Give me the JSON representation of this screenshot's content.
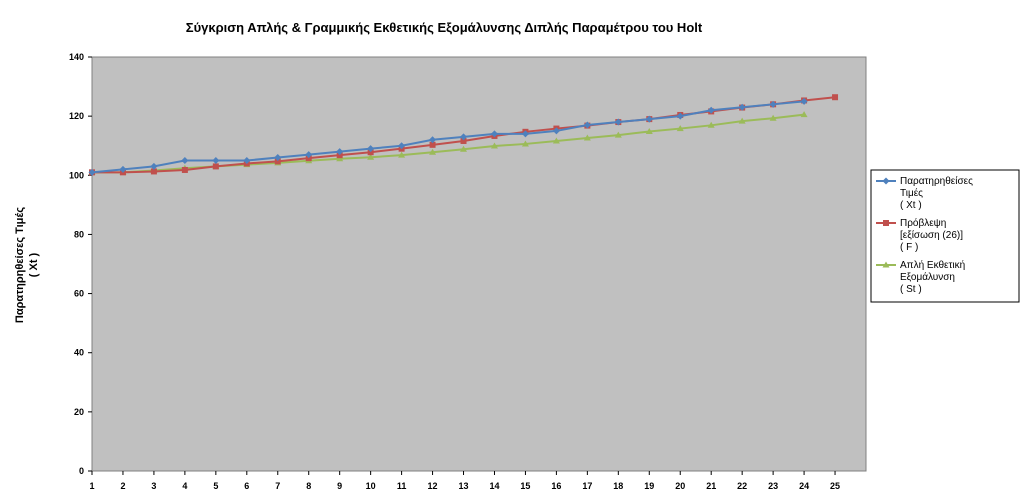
{
  "chart_data": {
    "type": "line",
    "title": "Σύγκριση Απλής & Γραμμικής Εκθετικής Εξομάλυνσης Διπλής Παραμέτρου του Holt",
    "ylabel_lines": [
      "Παρατηρηθείσες Τιμές",
      "( Xt )"
    ],
    "xlabel": "",
    "ylim": [
      0,
      140
    ],
    "yticks": [
      0,
      20,
      40,
      60,
      80,
      100,
      120,
      140
    ],
    "xlim": [
      1,
      26
    ],
    "xticks": [
      1,
      2,
      3,
      4,
      5,
      6,
      7,
      8,
      9,
      10,
      11,
      12,
      13,
      14,
      15,
      16,
      17,
      18,
      19,
      20,
      21,
      22,
      23,
      24,
      25
    ],
    "grid": false,
    "legend_position": "right",
    "plot_background": "#c0c0c0",
    "series": [
      {
        "legend_lines": [
          "Παρατηρηθείσες",
          "Τιμές",
          "( Xt )"
        ],
        "color": "#4f81bd",
        "marker": "diamond",
        "x": [
          1,
          2,
          3,
          4,
          5,
          6,
          7,
          8,
          9,
          10,
          11,
          12,
          13,
          14,
          15,
          16,
          17,
          18,
          19,
          20,
          21,
          22,
          23,
          24
        ],
        "values": [
          101,
          102,
          103,
          105,
          105,
          105,
          106,
          107,
          108,
          109,
          110,
          112,
          113,
          114,
          114,
          115,
          117,
          118,
          119,
          120,
          122,
          123,
          124,
          125
        ]
      },
      {
        "legend_lines": [
          "Πρόβλεψη",
          "[εξίσωση (26)]",
          "( F )"
        ],
        "color": "#c0504d",
        "marker": "square",
        "x": [
          1,
          2,
          3,
          4,
          5,
          6,
          7,
          8,
          9,
          10,
          11,
          12,
          13,
          14,
          15,
          16,
          17,
          18,
          19,
          20,
          21,
          22,
          23,
          24,
          25
        ],
        "values": [
          101,
          101,
          101.3,
          101.8,
          103,
          104,
          104.7,
          105.8,
          106.8,
          107.8,
          109,
          110.3,
          111.6,
          113.3,
          114.7,
          115.8,
          116.8,
          118,
          119,
          120.4,
          121.6,
          122.9,
          124,
          125.3,
          126.4
        ]
      },
      {
        "legend_lines": [
          "Απλή Εκθετική",
          "Εξομάλυνση",
          "( St )"
        ],
        "color": "#9bbb59",
        "marker": "triangle",
        "x": [
          1,
          2,
          3,
          4,
          5,
          6,
          7,
          8,
          9,
          10,
          11,
          12,
          13,
          14,
          15,
          16,
          17,
          18,
          19,
          20,
          21,
          22,
          23,
          24
        ],
        "values": [
          101,
          101,
          101.6,
          102.4,
          103,
          103.6,
          104.2,
          104.9,
          105.6,
          106.1,
          106.8,
          107.8,
          108.8,
          109.9,
          110.6,
          111.6,
          112.6,
          113.6,
          114.8,
          115.8,
          116.9,
          118.3,
          119.3,
          120.5
        ]
      }
    ]
  }
}
